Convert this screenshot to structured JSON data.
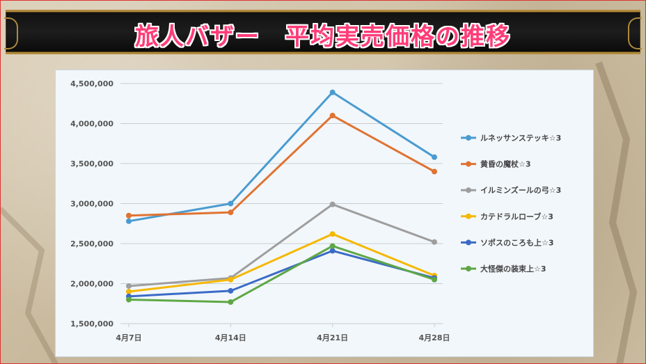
{
  "banner": {
    "title": "旅人バザー　平均実売価格の推移"
  },
  "chart_data": {
    "type": "line",
    "title": "",
    "xlabel": "",
    "ylabel": "",
    "categories": [
      "4月7日",
      "4月14日",
      "4月21日",
      "4月28日"
    ],
    "ylim": [
      1500000,
      4500000
    ],
    "yticks": [
      1500000,
      2000000,
      2500000,
      3000000,
      3500000,
      4000000,
      4500000
    ],
    "ytick_labels": [
      "1,500,000",
      "2,000,000",
      "2,500,000",
      "3,000,000",
      "3,500,000",
      "4,000,000",
      "4,500,000"
    ],
    "grid": true,
    "legend_position": "right",
    "series": [
      {
        "name": "ルネッサンステッキ☆3",
        "color": "#4a9bd0",
        "values": [
          2780000,
          3000000,
          4390000,
          3580000
        ]
      },
      {
        "name": "黄昏の魔杖☆3",
        "color": "#e07332",
        "values": [
          2850000,
          2890000,
          4100000,
          3400000
        ]
      },
      {
        "name": "イルミンズールの弓☆3",
        "color": "#9e9e9e",
        "values": [
          1970000,
          2070000,
          2990000,
          2520000
        ]
      },
      {
        "name": "カテドラルローブ☆3",
        "color": "#f5b800",
        "values": [
          1900000,
          2050000,
          2620000,
          2100000
        ]
      },
      {
        "name": "ソポスのころも上☆3",
        "color": "#3a6bc6",
        "values": [
          1840000,
          1910000,
          2410000,
          2070000
        ]
      },
      {
        "name": "大怪傑の装束上☆3",
        "color": "#5ea745",
        "values": [
          1800000,
          1770000,
          2470000,
          2050000
        ]
      }
    ]
  }
}
